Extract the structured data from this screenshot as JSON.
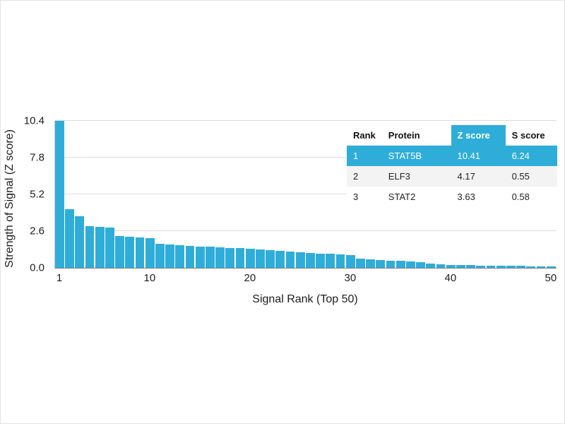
{
  "chart_data": {
    "type": "bar",
    "title": "",
    "xlabel": "Signal Rank (Top 50)",
    "ylabel": "Strength of Signal (Z score)",
    "x": [
      1,
      2,
      3,
      4,
      5,
      6,
      7,
      8,
      9,
      10,
      11,
      12,
      13,
      14,
      15,
      16,
      17,
      18,
      19,
      20,
      21,
      22,
      23,
      24,
      25,
      26,
      27,
      28,
      29,
      30,
      31,
      32,
      33,
      34,
      35,
      36,
      37,
      38,
      39,
      40,
      41,
      42,
      43,
      44,
      45,
      46,
      47,
      48,
      49,
      50
    ],
    "values": [
      10.41,
      4.17,
      3.63,
      2.95,
      2.9,
      2.85,
      2.25,
      2.2,
      2.15,
      2.1,
      1.7,
      1.65,
      1.6,
      1.55,
      1.5,
      1.48,
      1.45,
      1.42,
      1.4,
      1.35,
      1.3,
      1.25,
      1.2,
      1.15,
      1.1,
      1.05,
      1.0,
      0.98,
      0.95,
      0.9,
      0.65,
      0.6,
      0.55,
      0.52,
      0.5,
      0.45,
      0.4,
      0.3,
      0.25,
      0.22,
      0.2,
      0.18,
      0.17,
      0.16,
      0.15,
      0.14,
      0.13,
      0.12,
      0.11,
      0.1
    ],
    "ylim": [
      0,
      10.4
    ],
    "yticks": [
      0,
      2.6,
      5.2,
      7.8,
      10.4
    ],
    "ytick_labels": [
      "0.0",
      "2.6",
      "5.2",
      "7.8",
      "10.4"
    ],
    "xticks": [
      1,
      10,
      20,
      30,
      40,
      50
    ],
    "grid": "horizontal",
    "legend": "none",
    "bar_color": "#2fadd9"
  },
  "table": {
    "columns": [
      "Rank",
      "Protein",
      "Z score",
      "S score"
    ],
    "highlight_column_index": 2,
    "highlight_row_index": 0,
    "rows": [
      [
        "1",
        "STAT5B",
        "10.41",
        "6.24"
      ],
      [
        "2",
        "ELF3",
        "4.17",
        "0.55"
      ],
      [
        "3",
        "STAT2",
        "3.63",
        "0.58"
      ]
    ]
  },
  "colors": {
    "accent": "#2fadd9",
    "grid": "#dcdcdc",
    "axis": "#7b7b7b",
    "text": "#1c1c1c",
    "row_alt": "#f3f3f3"
  }
}
